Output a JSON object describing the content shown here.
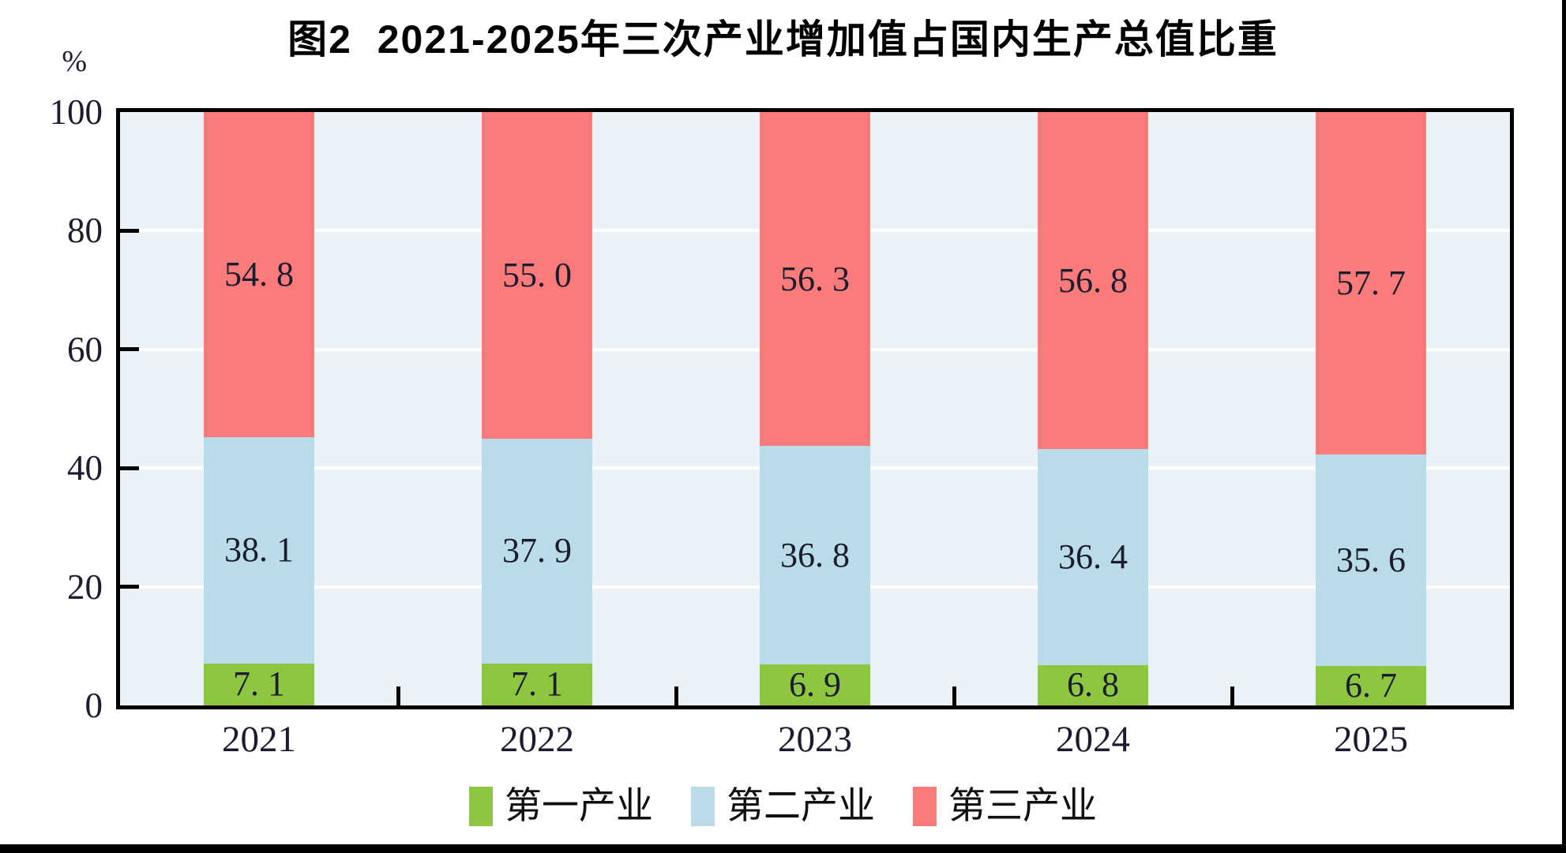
{
  "chart_data": {
    "type": "bar",
    "stacked": true,
    "title": "图2  2021-2025年三次产业增加值占国内生产总值比重",
    "ylabel": "%",
    "ylim": [
      0,
      100
    ],
    "yticks": [
      0,
      20,
      40,
      60,
      80,
      100
    ],
    "grid": true,
    "legend_position": "bottom",
    "categories": [
      "2021",
      "2022",
      "2023",
      "2024",
      "2025"
    ],
    "series": [
      {
        "key": "primary-industry",
        "name": "第一产业",
        "color": "#8dc63f",
        "values": [
          7.1,
          7.1,
          6.9,
          6.8,
          6.7
        ],
        "labels": [
          "7. 1",
          "7. 1",
          "6. 9",
          "6. 8",
          "6. 7"
        ]
      },
      {
        "key": "secondary-industry",
        "name": "第二产业",
        "color": "#b9dce8",
        "values": [
          38.1,
          37.9,
          36.8,
          36.4,
          35.6
        ],
        "labels": [
          "38. 1",
          "37. 9",
          "36. 8",
          "36. 4",
          "35. 6"
        ]
      },
      {
        "key": "tertiary-industry",
        "name": "第三产业",
        "color": "#fb7b7a",
        "values": [
          54.8,
          55.0,
          56.3,
          56.8,
          57.7
        ],
        "labels": [
          "54. 8",
          "55. 0",
          "56. 3",
          "56. 8",
          "57. 7"
        ]
      }
    ],
    "plot_background": "#eaf2f7",
    "gridline_color": "#ffffff",
    "axis_color": "#000000",
    "value_label_color": "#1c1c30"
  }
}
